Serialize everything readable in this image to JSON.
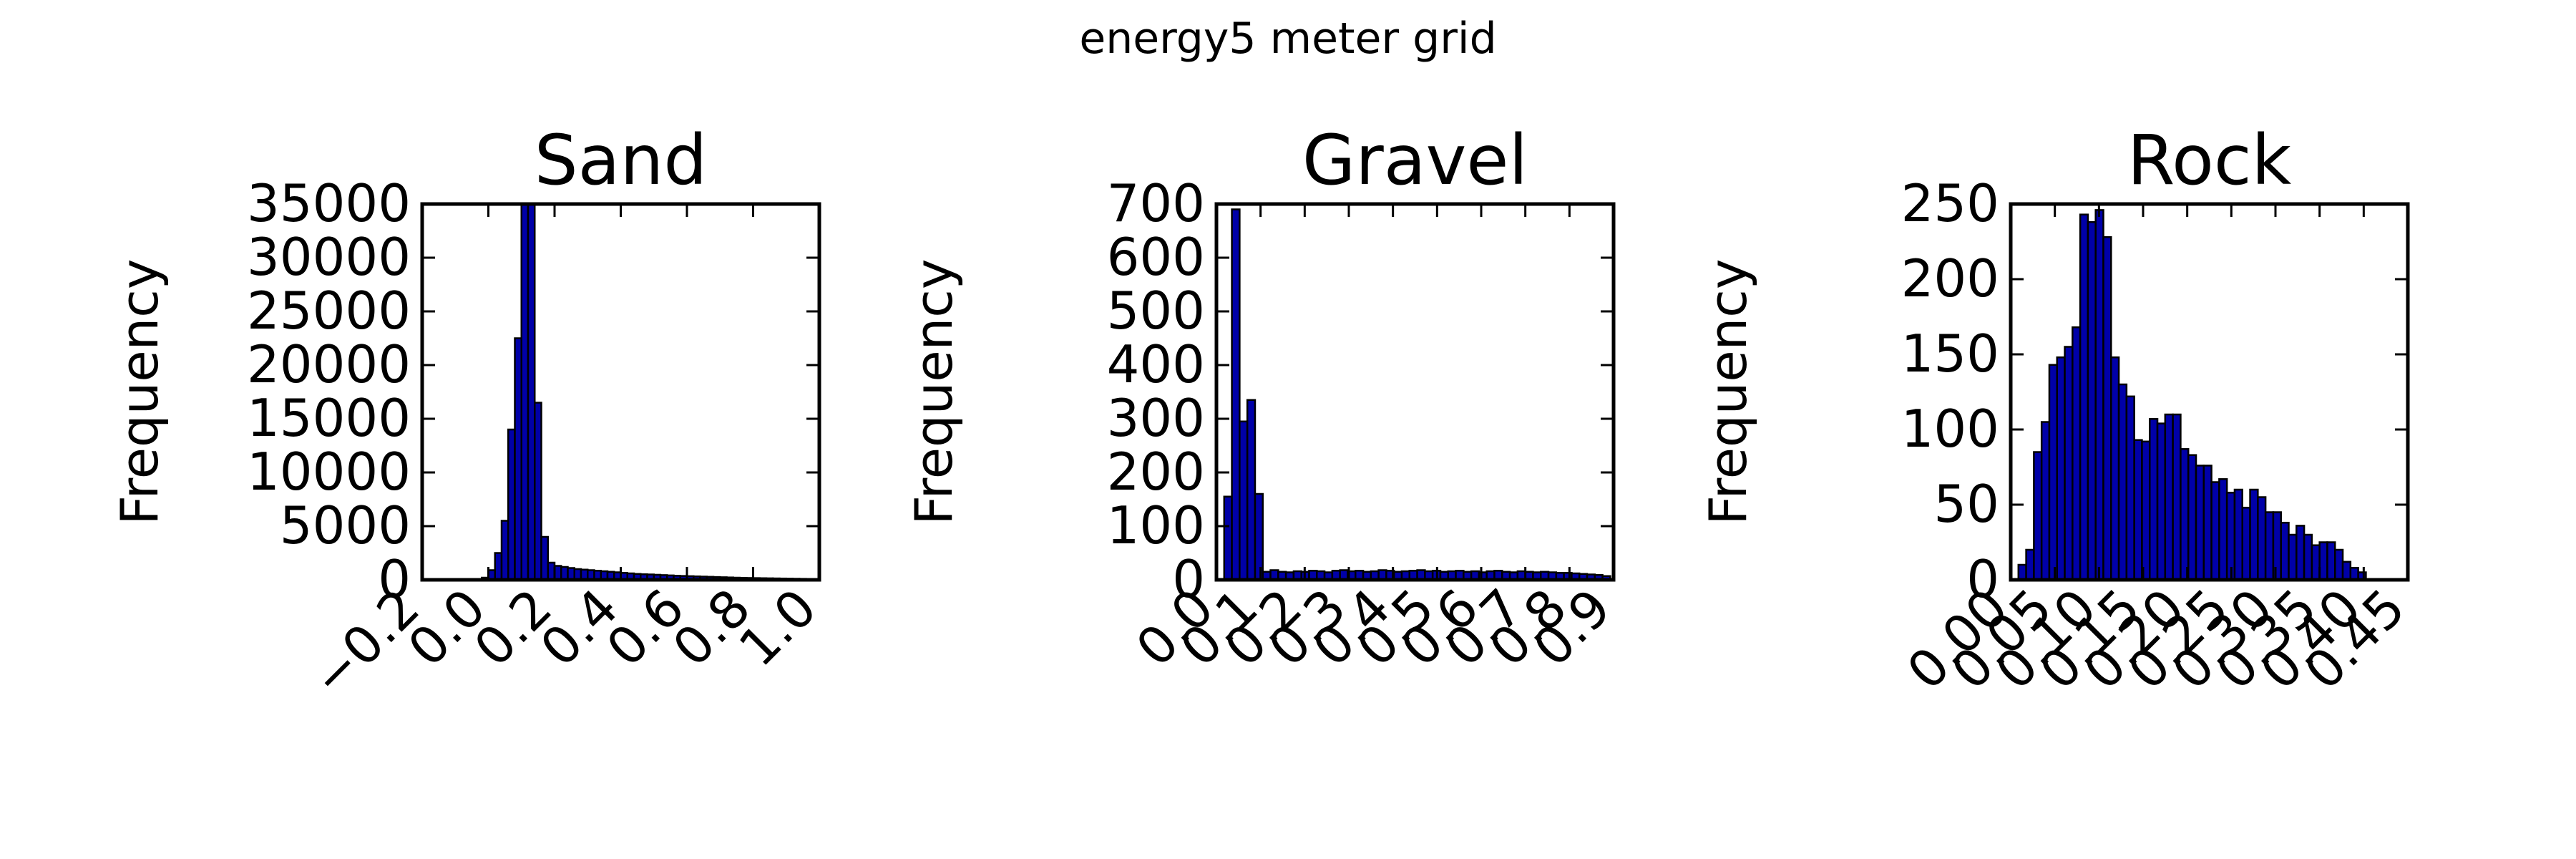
{
  "figure": {
    "suptitle": "energy5 meter grid"
  },
  "colors": {
    "bar_fill": "#0000a8",
    "bar_edge": "#000000",
    "axes": "#000000",
    "background": "#ffffff"
  },
  "chart_data": [
    {
      "type": "bar",
      "title": "Sand",
      "xlabel": "",
      "ylabel": "Frequency",
      "xlim": [
        -0.2,
        1.0
      ],
      "ylim": [
        0,
        35000
      ],
      "grid": false,
      "xticks": [
        -0.2,
        0.0,
        0.2,
        0.4,
        0.6,
        0.8,
        1.0
      ],
      "xtick_labels": [
        "−0.2",
        "0.0",
        "0.2",
        "0.4",
        "0.6",
        "0.8",
        "1.0"
      ],
      "yticks": [
        0,
        5000,
        10000,
        15000,
        20000,
        25000,
        30000,
        35000
      ],
      "ytick_labels": [
        "0",
        "5000",
        "10000",
        "15000",
        "20000",
        "25000",
        "30000",
        "35000"
      ],
      "bin_width": 0.02,
      "bins": [
        [
          -0.02,
          200
        ],
        [
          0.0,
          900
        ],
        [
          0.02,
          2500
        ],
        [
          0.04,
          5500
        ],
        [
          0.06,
          14000
        ],
        [
          0.08,
          22500
        ],
        [
          0.1,
          35000
        ],
        [
          0.12,
          35000
        ],
        [
          0.14,
          16500
        ],
        [
          0.16,
          4000
        ],
        [
          0.18,
          1600
        ],
        [
          0.2,
          1300
        ],
        [
          0.22,
          1200
        ],
        [
          0.24,
          1100
        ],
        [
          0.26,
          1000
        ],
        [
          0.28,
          950
        ],
        [
          0.3,
          900
        ],
        [
          0.32,
          850
        ],
        [
          0.34,
          800
        ],
        [
          0.36,
          750
        ],
        [
          0.38,
          700
        ],
        [
          0.4,
          650
        ],
        [
          0.42,
          600
        ],
        [
          0.44,
          550
        ],
        [
          0.46,
          520
        ],
        [
          0.48,
          500
        ],
        [
          0.5,
          470
        ],
        [
          0.52,
          440
        ],
        [
          0.54,
          410
        ],
        [
          0.56,
          380
        ],
        [
          0.58,
          360
        ],
        [
          0.6,
          340
        ],
        [
          0.62,
          320
        ],
        [
          0.64,
          300
        ],
        [
          0.66,
          280
        ],
        [
          0.68,
          260
        ],
        [
          0.7,
          240
        ],
        [
          0.72,
          220
        ],
        [
          0.74,
          200
        ],
        [
          0.76,
          180
        ],
        [
          0.78,
          170
        ],
        [
          0.8,
          160
        ],
        [
          0.82,
          150
        ],
        [
          0.84,
          140
        ],
        [
          0.86,
          130
        ],
        [
          0.88,
          120
        ],
        [
          0.9,
          110
        ],
        [
          0.92,
          100
        ],
        [
          0.94,
          90
        ],
        [
          0.96,
          80
        ],
        [
          0.98,
          70
        ]
      ]
    },
    {
      "type": "bar",
      "title": "Gravel",
      "xlabel": "",
      "ylabel": "Frequency",
      "xlim": [
        0.0,
        0.9
      ],
      "ylim": [
        0,
        700
      ],
      "grid": false,
      "xticks": [
        0.0,
        0.1,
        0.2,
        0.3,
        0.4,
        0.5,
        0.6,
        0.7,
        0.8,
        0.9
      ],
      "xtick_labels": [
        "0.0",
        "0.1",
        "0.2",
        "0.3",
        "0.4",
        "0.5",
        "0.6",
        "0.7",
        "0.8",
        "0.9"
      ],
      "yticks": [
        0,
        100,
        200,
        300,
        400,
        500,
        600,
        700
      ],
      "ytick_labels": [
        "0",
        "100",
        "200",
        "300",
        "400",
        "500",
        "600",
        "700"
      ],
      "bin_width": 0.0175,
      "bins": [
        [
          0.0175,
          155
        ],
        [
          0.035,
          690
        ],
        [
          0.0525,
          295
        ],
        [
          0.07,
          335
        ],
        [
          0.0875,
          160
        ],
        [
          0.105,
          15
        ],
        [
          0.1225,
          18
        ],
        [
          0.14,
          15
        ],
        [
          0.1575,
          14
        ],
        [
          0.175,
          16
        ],
        [
          0.1925,
          15
        ],
        [
          0.21,
          17
        ],
        [
          0.2275,
          16
        ],
        [
          0.245,
          14
        ],
        [
          0.2625,
          17
        ],
        [
          0.28,
          18
        ],
        [
          0.2975,
          16
        ],
        [
          0.315,
          17
        ],
        [
          0.3325,
          15
        ],
        [
          0.35,
          16
        ],
        [
          0.3675,
          18
        ],
        [
          0.385,
          17
        ],
        [
          0.4025,
          15
        ],
        [
          0.42,
          16
        ],
        [
          0.4375,
          17
        ],
        [
          0.455,
          18
        ],
        [
          0.4725,
          16
        ],
        [
          0.49,
          17
        ],
        [
          0.5075,
          15
        ],
        [
          0.525,
          16
        ],
        [
          0.5425,
          17
        ],
        [
          0.56,
          15
        ],
        [
          0.5775,
          16
        ],
        [
          0.595,
          14
        ],
        [
          0.6125,
          16
        ],
        [
          0.63,
          17
        ],
        [
          0.6475,
          15
        ],
        [
          0.665,
          14
        ],
        [
          0.6825,
          16
        ],
        [
          0.7,
          15
        ],
        [
          0.7175,
          14
        ],
        [
          0.735,
          15
        ],
        [
          0.7525,
          14
        ],
        [
          0.77,
          13
        ],
        [
          0.7875,
          13
        ],
        [
          0.805,
          12
        ],
        [
          0.8225,
          11
        ],
        [
          0.84,
          10
        ],
        [
          0.8575,
          9
        ],
        [
          0.875,
          7
        ]
      ]
    },
    {
      "type": "bar",
      "title": "Rock",
      "xlabel": "",
      "ylabel": "Frequency",
      "xlim": [
        0.0,
        0.45
      ],
      "ylim": [
        0,
        250
      ],
      "grid": false,
      "xticks": [
        0.0,
        0.05,
        0.1,
        0.15,
        0.2,
        0.25,
        0.3,
        0.35,
        0.4,
        0.45
      ],
      "xtick_labels": [
        "0.00",
        "0.05",
        "0.10",
        "0.15",
        "0.20",
        "0.25",
        "0.30",
        "0.35",
        "0.40",
        "0.45"
      ],
      "yticks": [
        0,
        50,
        100,
        150,
        200,
        250
      ],
      "ytick_labels": [
        "0",
        "50",
        "100",
        "150",
        "200",
        "250"
      ],
      "bin_width": 0.00875,
      "bins": [
        [
          0.00875,
          10
        ],
        [
          0.0175,
          20
        ],
        [
          0.02625,
          85
        ],
        [
          0.035,
          105
        ],
        [
          0.04375,
          143
        ],
        [
          0.0525,
          148
        ],
        [
          0.06125,
          155
        ],
        [
          0.07,
          168
        ],
        [
          0.07875,
          243
        ],
        [
          0.0875,
          238
        ],
        [
          0.09625,
          246
        ],
        [
          0.105,
          228
        ],
        [
          0.11375,
          148
        ],
        [
          0.1225,
          130
        ],
        [
          0.13125,
          122
        ],
        [
          0.14,
          93
        ],
        [
          0.14875,
          92
        ],
        [
          0.1575,
          107
        ],
        [
          0.16625,
          104
        ],
        [
          0.175,
          110
        ],
        [
          0.18375,
          110
        ],
        [
          0.1925,
          87
        ],
        [
          0.20125,
          83
        ],
        [
          0.21,
          76
        ],
        [
          0.21875,
          76
        ],
        [
          0.2275,
          65
        ],
        [
          0.23625,
          67
        ],
        [
          0.245,
          58
        ],
        [
          0.25375,
          60
        ],
        [
          0.2625,
          48
        ],
        [
          0.27125,
          60
        ],
        [
          0.28,
          55
        ],
        [
          0.28875,
          45
        ],
        [
          0.2975,
          45
        ],
        [
          0.30625,
          38
        ],
        [
          0.315,
          30
        ],
        [
          0.32375,
          36
        ],
        [
          0.3325,
          30
        ],
        [
          0.34125,
          23
        ],
        [
          0.35,
          25
        ],
        [
          0.35875,
          25
        ],
        [
          0.3675,
          20
        ],
        [
          0.37625,
          12
        ],
        [
          0.385,
          8
        ],
        [
          0.39375,
          5
        ]
      ]
    }
  ]
}
